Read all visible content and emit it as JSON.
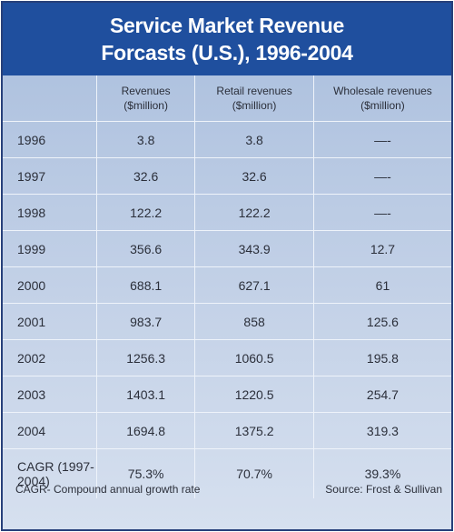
{
  "title": "Service Market Revenue Forcasts (U.S.), 1996-2004",
  "table": {
    "columns": [
      "",
      "Revenues ($million)",
      "Retail revenues ($million)",
      "Wholesale revenues ($million)"
    ],
    "rows": [
      [
        "1996",
        "3.8",
        "3.8",
        "—-"
      ],
      [
        "1997",
        "32.6",
        "32.6",
        "—-"
      ],
      [
        "1998",
        "122.2",
        "122.2",
        "—-"
      ],
      [
        "1999",
        "356.6",
        "343.9",
        "12.7"
      ],
      [
        "2000",
        "688.1",
        "627.1",
        "61"
      ],
      [
        "2001",
        "983.7",
        "858",
        "125.6"
      ],
      [
        "2002",
        "1256.3",
        "1060.5",
        "195.8"
      ],
      [
        "2003",
        "1403.1",
        "1220.5",
        "254.7"
      ],
      [
        "2004",
        "1694.8",
        "1375.2",
        "319.3"
      ],
      [
        "CAGR (1997-2004)",
        "75.3%",
        "70.7%",
        "39.3%"
      ]
    ]
  },
  "footer": {
    "note": "CAGR- Compound annual growth rate",
    "source": "Source: Frost & Sullivan"
  }
}
